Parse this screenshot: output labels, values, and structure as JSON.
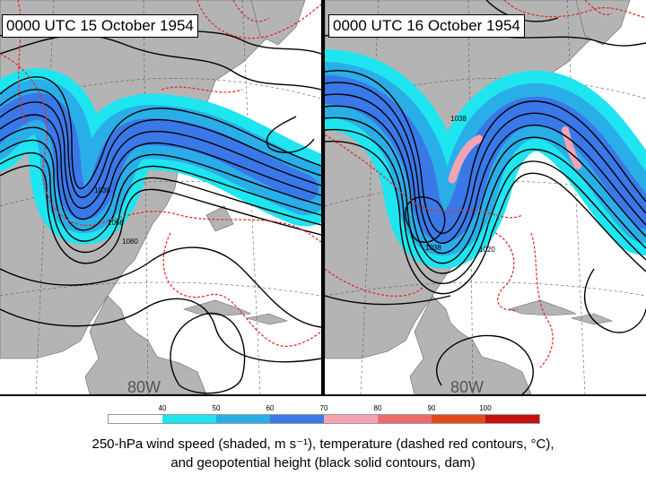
{
  "panels": {
    "left": {
      "title": "0000 UTC 15 October 1954",
      "longitude_label": "80W",
      "contour_labels": [
        "1038",
        "1056",
        "1080"
      ]
    },
    "right": {
      "title": "0000 UTC 16 October 1954",
      "longitude_label": "80W",
      "contour_labels": [
        "1038",
        "1038",
        "1020"
      ]
    }
  },
  "colorbar": {
    "ticks": [
      "40",
      "50",
      "60",
      "70",
      "80",
      "90",
      "100"
    ],
    "colors": [
      "#ffffff",
      "#ffffff",
      "#1ee5ef",
      "#1ee5ef",
      "#2aaee8",
      "#2aaee8",
      "#3a78e8",
      "#3a78e8",
      "#f4a3b5",
      "#f4a3b5",
      "#ec6a6a",
      "#ec6a6a",
      "#e34a1a",
      "#e34a1a",
      "#c41010",
      "#c41010"
    ]
  },
  "caption": {
    "line1": "250-hPa wind speed (shaded, m s⁻¹), temperature (dashed red contours, °C),",
    "line2": "and geopotential height (black solid contours, dam)"
  },
  "colors": {
    "land": "#b4b4b4",
    "ocean": "#ffffff",
    "height_contour": "#000000",
    "temp_contour": "#e03030"
  }
}
